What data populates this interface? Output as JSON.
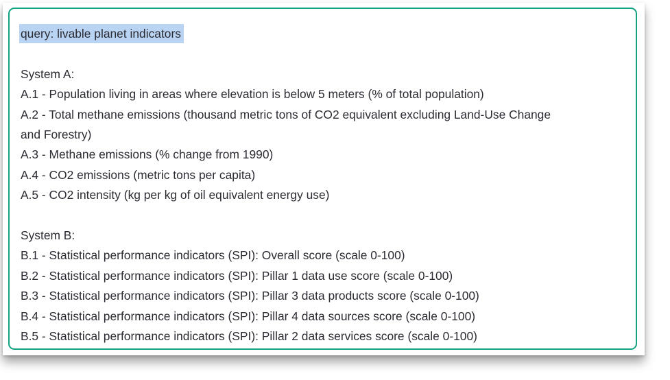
{
  "query": {
    "text": "query: livable planet indicators"
  },
  "system_a": {
    "heading": "System A:",
    "items": [
      "A.1 - Population living in areas where elevation is below 5 meters (% of total population)",
      "A.2 - Total methane emissions (thousand metric tons of CO2 equivalent excluding Land-Use Change",
      "and Forestry)",
      "A.3 - Methane emissions (% change from 1990)",
      "A.4 - CO2 emissions (metric tons per capita)",
      "A.5 - CO2 intensity (kg per kg of oil equivalent energy use)"
    ]
  },
  "system_b": {
    "heading": "System B:",
    "items": [
      "B.1 - Statistical performance indicators (SPI): Overall score (scale 0-100)",
      "B.2 - Statistical performance indicators (SPI): Pillar 1 data use score (scale 0-100)",
      "B.3 - Statistical performance indicators (SPI): Pillar 3 data products score  (scale 0-100)",
      "B.4 - Statistical performance indicators (SPI): Pillar 4 data sources score (scale 0-100)",
      "B.5 - Statistical performance indicators (SPI): Pillar 2 data services score (scale 0-100)"
    ]
  },
  "colors": {
    "border": "#10a37f",
    "selection_highlight": "#b9d3f2",
    "text": "#2b2b33"
  }
}
